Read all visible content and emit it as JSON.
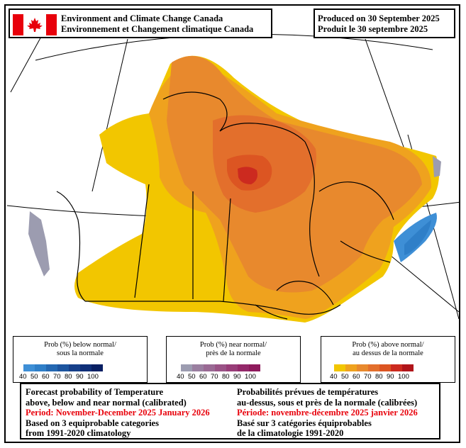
{
  "header": {
    "agency_en": "Environment and Climate Change Canada",
    "agency_fr": "Environnement et Changement climatique Canada",
    "produced_en": "Produced on 30 September 2025",
    "produced_fr": "Produit le 30 septembre 2025"
  },
  "legends": [
    {
      "title_en": "Prob (%) below normal/",
      "title_fr": "sous la normale",
      "ticks": [
        "40",
        "50",
        "60",
        "70",
        "80",
        "90",
        "100"
      ],
      "colors": [
        "#3e8fd6",
        "#2f7fc8",
        "#2468b2",
        "#1d559f",
        "#16408a",
        "#0f2f78",
        "#081f63"
      ]
    },
    {
      "title_en": "Prob (%) near normal/",
      "title_fr": "près de la normale",
      "ticks": [
        "40",
        "50",
        "60",
        "70",
        "80",
        "90",
        "100"
      ],
      "colors": [
        "#9c9cb0",
        "#9a7fa0",
        "#9a6a94",
        "#9a5386",
        "#983d78",
        "#94296a",
        "#8e1a5c"
      ]
    },
    {
      "title_en": "Prob (%) above normal/",
      "title_fr": "au dessus de la normale",
      "ticks": [
        "40",
        "50",
        "60",
        "70",
        "80",
        "90",
        "100"
      ],
      "colors": [
        "#f2c600",
        "#efa21e",
        "#e8892d",
        "#e36f2c",
        "#dc5522",
        "#cc2a1f",
        "#b0141a"
      ]
    }
  ],
  "info": {
    "en_line1": "Forecast probability of Temperature",
    "en_line2": "above, below and near normal (calibrated)",
    "en_period": "Period: November-December 2025 January 2026",
    "en_line4": "Based on 3 equiprobable categories",
    "en_line5": "from 1991-2020 climatology",
    "fr_line1": "Probabilités prévues de températures",
    "fr_line2": "au-dessus, sous et près de la normale (calibrées)",
    "fr_period": "Période: novembre-décembre 2025 janvier 2026",
    "fr_line4": "Basé sur 3 catégories équiprobables",
    "fr_line5": "de la climatologie 1991-2020"
  },
  "map": {
    "categories": [
      "above normal",
      "near normal",
      "below normal"
    ],
    "colors": {
      "above_40": "#f2c600",
      "above_50": "#efa21e",
      "above_60": "#e8892d",
      "above_70": "#e36f2c",
      "above_80": "#dc5522",
      "above_90": "#cc2a1f",
      "near_40": "#9c9cb0",
      "below_40": "#3e8fd6",
      "below_50": "#2f7fc8",
      "below_60": "#2468b2"
    }
  }
}
